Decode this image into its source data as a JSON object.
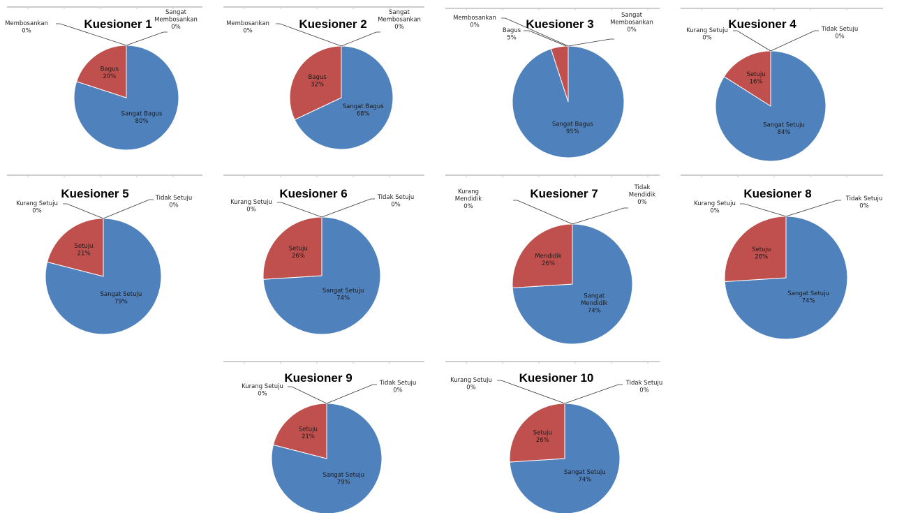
{
  "colors": {
    "blue": "#4F81BD",
    "red": "#C0504D",
    "edge": "#ffffff"
  },
  "chart_data": [
    {
      "type": "pie",
      "title": "Kuesioner 1",
      "slices": [
        {
          "label": "Sangat Bagus",
          "value": 80,
          "pct_text": "80%",
          "color": "#4F81BD"
        },
        {
          "label": "Bagus",
          "value": 20,
          "pct_text": "20%",
          "color": "#C0504D"
        },
        {
          "label": "Membosankan",
          "value": 0,
          "pct_text": "0%"
        },
        {
          "label": "Sangat Membosankan",
          "value": 0,
          "pct_text": "0%"
        }
      ]
    },
    {
      "type": "pie",
      "title": "Kuesioner 2",
      "slices": [
        {
          "label": "Sangat Bagus",
          "value": 68,
          "pct_text": "68%",
          "color": "#4F81BD"
        },
        {
          "label": "Bagus",
          "value": 32,
          "pct_text": "32%",
          "color": "#C0504D"
        },
        {
          "label": "Membosankan",
          "value": 0,
          "pct_text": "0%"
        },
        {
          "label": "Sangat Membosankan",
          "value": 0,
          "pct_text": "0%"
        }
      ]
    },
    {
      "type": "pie",
      "title": "Kuesioner 3",
      "slices": [
        {
          "label": "Sangat Bagus",
          "value": 95,
          "pct_text": "95%",
          "color": "#4F81BD"
        },
        {
          "label": "Bagus",
          "value": 5,
          "pct_text": "5%",
          "color": "#C0504D"
        },
        {
          "label": "Membosankan",
          "value": 0,
          "pct_text": "0%"
        },
        {
          "label": "Sangat Membosankan",
          "value": 0,
          "pct_text": "0%"
        }
      ]
    },
    {
      "type": "pie",
      "title": "Kuesioner 4",
      "slices": [
        {
          "label": "Sangat Setuju",
          "value": 84,
          "pct_text": "84%",
          "color": "#4F81BD"
        },
        {
          "label": "Setuju",
          "value": 16,
          "pct_text": "16%",
          "color": "#C0504D"
        },
        {
          "label": "Kurang Setuju",
          "value": 0,
          "pct_text": "0%"
        },
        {
          "label": "Tidak Setuju",
          "value": 0,
          "pct_text": "0%"
        }
      ]
    },
    {
      "type": "pie",
      "title": "Kuesioner 5",
      "slices": [
        {
          "label": "Sangat Setuju",
          "value": 79,
          "pct_text": "79%",
          "color": "#4F81BD"
        },
        {
          "label": "Setuju",
          "value": 21,
          "pct_text": "21%",
          "color": "#C0504D"
        },
        {
          "label": "Kurang Setuju",
          "value": 0,
          "pct_text": "0%"
        },
        {
          "label": "Tidak Setuju",
          "value": 0,
          "pct_text": "0%"
        }
      ]
    },
    {
      "type": "pie",
      "title": "Kuesioner 6",
      "slices": [
        {
          "label": "Sangat Setuju",
          "value": 74,
          "pct_text": "74%",
          "color": "#4F81BD"
        },
        {
          "label": "Setuju",
          "value": 26,
          "pct_text": "26%",
          "color": "#C0504D"
        },
        {
          "label": "Kurang Setuju",
          "value": 0,
          "pct_text": "0%"
        },
        {
          "label": "Tidak Setuju",
          "value": 0,
          "pct_text": "0%"
        }
      ]
    },
    {
      "type": "pie",
      "title": "Kuesioner 7",
      "slices": [
        {
          "label": "Sangat Mendidik",
          "value": 74,
          "pct_text": "74%",
          "color": "#4F81BD"
        },
        {
          "label": "Mendidik",
          "value": 26,
          "pct_text": "26%",
          "color": "#C0504D"
        },
        {
          "label": "Kurang Mendidik",
          "value": 0,
          "pct_text": "0%"
        },
        {
          "label": "Tidak Mendidik",
          "value": 0,
          "pct_text": "0%"
        }
      ]
    },
    {
      "type": "pie",
      "title": "Kuesioner 8",
      "slices": [
        {
          "label": "Sangat Setuju",
          "value": 74,
          "pct_text": "74%",
          "color": "#4F81BD"
        },
        {
          "label": "Setuju",
          "value": 26,
          "pct_text": "26%",
          "color": "#C0504D"
        },
        {
          "label": "Kurang Setuju",
          "value": 0,
          "pct_text": "0%"
        },
        {
          "label": "Tidak Setuju",
          "value": 0,
          "pct_text": "0%"
        }
      ]
    },
    {
      "type": "pie",
      "title": "Kuesioner 9",
      "slices": [
        {
          "label": "Sangat Setuju",
          "value": 79,
          "pct_text": "79%",
          "color": "#4F81BD"
        },
        {
          "label": "Setuju",
          "value": 21,
          "pct_text": "21%",
          "color": "#C0504D"
        },
        {
          "label": "Kurang Setuju",
          "value": 0,
          "pct_text": "0%"
        },
        {
          "label": "Tidak Setuju",
          "value": 0,
          "pct_text": "0%"
        }
      ]
    },
    {
      "type": "pie",
      "title": "Kuesioner 10",
      "slices": [
        {
          "label": "Sangat Setuju",
          "value": 74,
          "pct_text": "74%",
          "color": "#4F81BD"
        },
        {
          "label": "Setuju",
          "value": 26,
          "pct_text": "26%",
          "color": "#C0504D"
        },
        {
          "label": "Kurang Setuju",
          "value": 0,
          "pct_text": "0%"
        },
        {
          "label": "Tidak Setuju",
          "value": 0,
          "pct_text": "0%"
        }
      ]
    }
  ]
}
